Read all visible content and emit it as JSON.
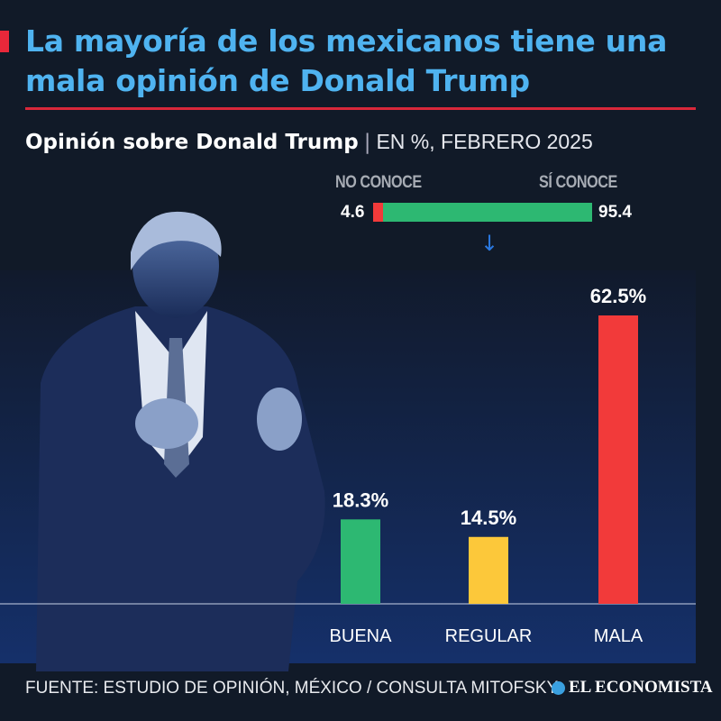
{
  "header": {
    "title": "La mayoría de los mexicanos tiene una mala opinión de Donald Trump",
    "subtitle": "Opinión sobre Donald Trump",
    "subtitle_separator": "|",
    "unit": "EN %, FEBRERO 2025"
  },
  "awareness": {
    "no_label": "NO CONOCE",
    "yes_label": "SÍ CONOCE",
    "no_value": "4.6",
    "yes_value": "95.4",
    "no_pct": 4.6,
    "yes_pct": 95.4,
    "no_color": "#f23a3a",
    "yes_color": "#2db872",
    "arrow_icon": "arrow-down-icon"
  },
  "chart_data": {
    "type": "bar",
    "title": "Opinión sobre Donald Trump",
    "categories": [
      "BUENA",
      "REGULAR",
      "MALA"
    ],
    "values": [
      18.3,
      14.5,
      62.5
    ],
    "value_labels": [
      "18.3%",
      "14.5%",
      "62.5%"
    ],
    "colors": [
      "#2db872",
      "#fcc83a",
      "#f23a3a"
    ],
    "ylim": [
      0,
      62.5
    ],
    "grid": false
  },
  "photo": {
    "subject": "Donald Trump"
  },
  "footer": {
    "source": "FUENTE: ESTUDIO DE OPINIÓN, MÉXICO / CONSULTA MITOFSKY",
    "logo": "EL ECONOMISTA"
  }
}
